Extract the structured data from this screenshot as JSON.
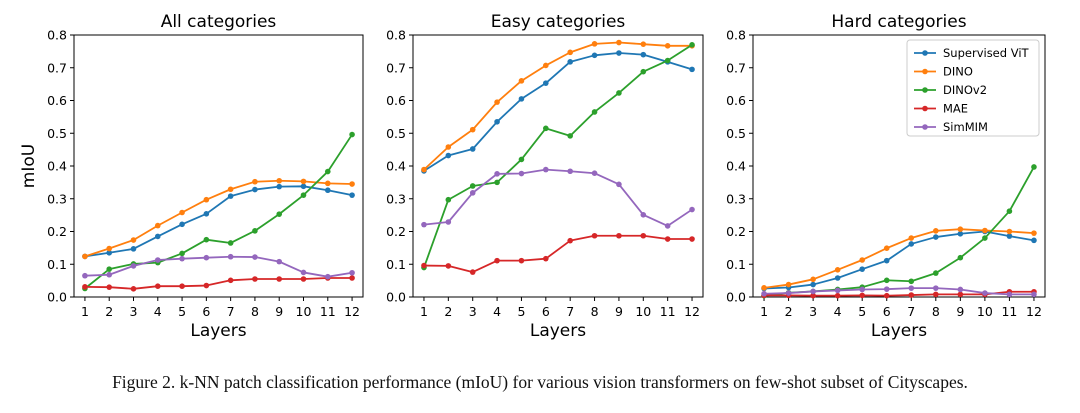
{
  "caption": "Figure 2. k-NN patch classification performance (mIoU) for various vision transformers on few-shot subset of Cityscapes.",
  "series_colors": {
    "Supervised ViT": "#1f77b4",
    "DINO": "#ff7f0e",
    "DINOv2": "#2ca02c",
    "MAE": "#d62728",
    "SimMIM": "#9467bd"
  },
  "chart_data": [
    {
      "type": "line",
      "title": "All categories",
      "xlabel": "Layers",
      "ylabel": "mIoU",
      "x": [
        1,
        2,
        3,
        4,
        5,
        6,
        7,
        8,
        9,
        10,
        11,
        12
      ],
      "xticks": [
        "1",
        "2",
        "3",
        "4",
        "5",
        "6",
        "7",
        "8",
        "9",
        "10",
        "11",
        "12"
      ],
      "yticks": [
        "0.0",
        "0.1",
        "0.2",
        "0.3",
        "0.4",
        "0.5",
        "0.6",
        "0.7",
        "0.8"
      ],
      "ylim": [
        0,
        0.8
      ],
      "series": [
        {
          "name": "Supervised ViT",
          "values": [
            0.124,
            0.135,
            0.147,
            0.185,
            0.222,
            0.254,
            0.308,
            0.328,
            0.337,
            0.338,
            0.326,
            0.311
          ]
        },
        {
          "name": "DINO",
          "values": [
            0.124,
            0.148,
            0.174,
            0.218,
            0.258,
            0.297,
            0.329,
            0.352,
            0.355,
            0.353,
            0.347,
            0.345
          ]
        },
        {
          "name": "DINOv2",
          "values": [
            0.026,
            0.085,
            0.101,
            0.105,
            0.133,
            0.175,
            0.165,
            0.202,
            0.253,
            0.311,
            0.383,
            0.496
          ]
        },
        {
          "name": "MAE",
          "values": [
            0.031,
            0.03,
            0.025,
            0.033,
            0.033,
            0.035,
            0.051,
            0.055,
            0.055,
            0.055,
            0.058,
            0.058
          ]
        },
        {
          "name": "SimMIM",
          "values": [
            0.065,
            0.068,
            0.095,
            0.113,
            0.117,
            0.12,
            0.123,
            0.122,
            0.108,
            0.075,
            0.062,
            0.074
          ]
        }
      ]
    },
    {
      "type": "line",
      "title": "Easy categories",
      "xlabel": "Layers",
      "ylabel": "",
      "x": [
        1,
        2,
        3,
        4,
        5,
        6,
        7,
        8,
        9,
        10,
        11,
        12
      ],
      "xticks": [
        "1",
        "2",
        "3",
        "4",
        "5",
        "6",
        "7",
        "8",
        "9",
        "10",
        "11",
        "12"
      ],
      "yticks": [
        "0.0",
        "0.1",
        "0.2",
        "0.3",
        "0.4",
        "0.5",
        "0.6",
        "0.7",
        "0.8"
      ],
      "ylim": [
        0,
        0.8
      ],
      "series": [
        {
          "name": "Supervised ViT",
          "values": [
            0.385,
            0.432,
            0.452,
            0.535,
            0.605,
            0.653,
            0.718,
            0.738,
            0.745,
            0.74,
            0.718,
            0.695
          ]
        },
        {
          "name": "DINO",
          "values": [
            0.389,
            0.458,
            0.511,
            0.595,
            0.66,
            0.707,
            0.747,
            0.773,
            0.777,
            0.772,
            0.767,
            0.767
          ]
        },
        {
          "name": "DINOv2",
          "values": [
            0.09,
            0.297,
            0.339,
            0.35,
            0.42,
            0.515,
            0.492,
            0.565,
            0.623,
            0.688,
            0.722,
            0.77
          ]
        },
        {
          "name": "MAE",
          "values": [
            0.096,
            0.095,
            0.076,
            0.111,
            0.111,
            0.117,
            0.172,
            0.187,
            0.187,
            0.187,
            0.177,
            0.177
          ]
        },
        {
          "name": "SimMIM",
          "values": [
            0.221,
            0.229,
            0.318,
            0.376,
            0.377,
            0.389,
            0.384,
            0.378,
            0.344,
            0.251,
            0.217,
            0.267
          ]
        }
      ]
    },
    {
      "type": "line",
      "title": "Hard categories",
      "xlabel": "Layers",
      "ylabel": "",
      "x": [
        1,
        2,
        3,
        4,
        5,
        6,
        7,
        8,
        9,
        10,
        11,
        12
      ],
      "xticks": [
        "1",
        "2",
        "3",
        "4",
        "5",
        "6",
        "7",
        "8",
        "9",
        "10",
        "11",
        "12"
      ],
      "yticks": [
        "0.0",
        "0.1",
        "0.2",
        "0.3",
        "0.4",
        "0.5",
        "0.6",
        "0.7",
        "0.8"
      ],
      "ylim": [
        0,
        0.8
      ],
      "legend": "top-right",
      "series": [
        {
          "name": "Supervised ViT",
          "values": [
            0.026,
            0.029,
            0.038,
            0.058,
            0.085,
            0.111,
            0.162,
            0.183,
            0.193,
            0.2,
            0.186,
            0.173
          ]
        },
        {
          "name": "DINO",
          "values": [
            0.028,
            0.038,
            0.054,
            0.083,
            0.113,
            0.149,
            0.18,
            0.202,
            0.207,
            0.203,
            0.2,
            0.195
          ]
        },
        {
          "name": "DINOv2",
          "values": [
            0.004,
            0.013,
            0.017,
            0.023,
            0.03,
            0.051,
            0.048,
            0.073,
            0.12,
            0.18,
            0.262,
            0.397
          ]
        },
        {
          "name": "MAE",
          "values": [
            0.005,
            0.005,
            0.004,
            0.004,
            0.005,
            0.004,
            0.006,
            0.008,
            0.008,
            0.008,
            0.016,
            0.016
          ]
        },
        {
          "name": "SimMIM",
          "values": [
            0.01,
            0.012,
            0.017,
            0.02,
            0.023,
            0.024,
            0.027,
            0.027,
            0.023,
            0.012,
            0.008,
            0.008
          ]
        }
      ]
    }
  ]
}
